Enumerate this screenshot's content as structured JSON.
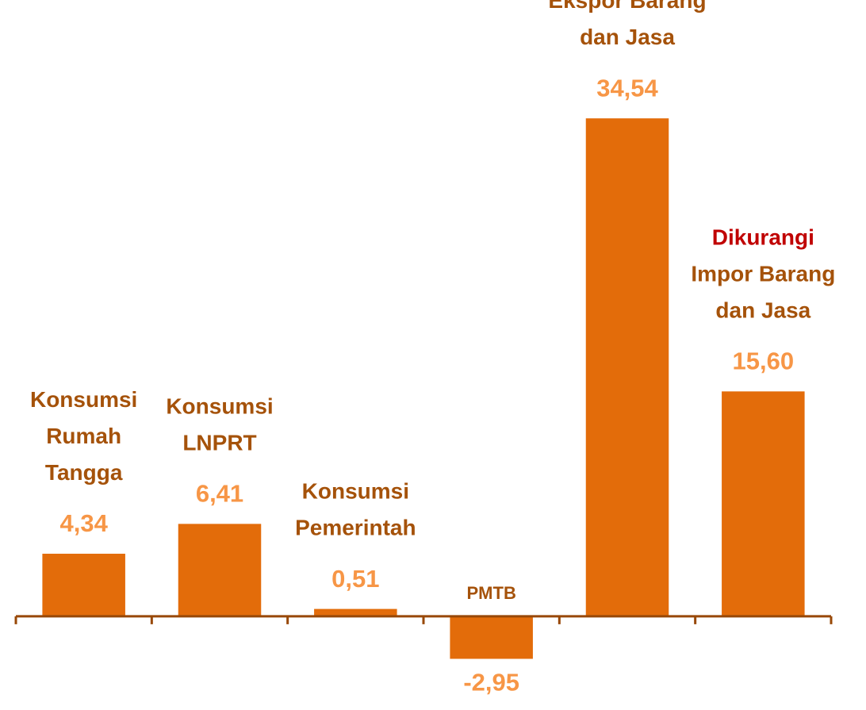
{
  "chart_data": {
    "type": "bar",
    "categories": [
      "Konsumsi\nRumah\nTangga",
      "Konsumsi\nLNPRT",
      "Konsumsi\nPemerintah",
      "PMTB",
      "Ekspor Barang\ndan Jasa",
      "Dikurangi\nImpor Barang\ndan Jasa"
    ],
    "values": [
      4.34,
      6.41,
      0.51,
      -2.95,
      34.54,
      15.6
    ],
    "value_labels": [
      "4,34",
      "6,41",
      "0,51",
      "-2,95",
      "34,54",
      "15,60"
    ],
    "color": "#e36c0a",
    "value_label_color": "#f79646",
    "category_label_color": "#a5520a",
    "highlight_line": {
      "category": 5,
      "line": 0,
      "color": "#c00000"
    },
    "ylim": [
      -6.5,
      42.75
    ]
  }
}
